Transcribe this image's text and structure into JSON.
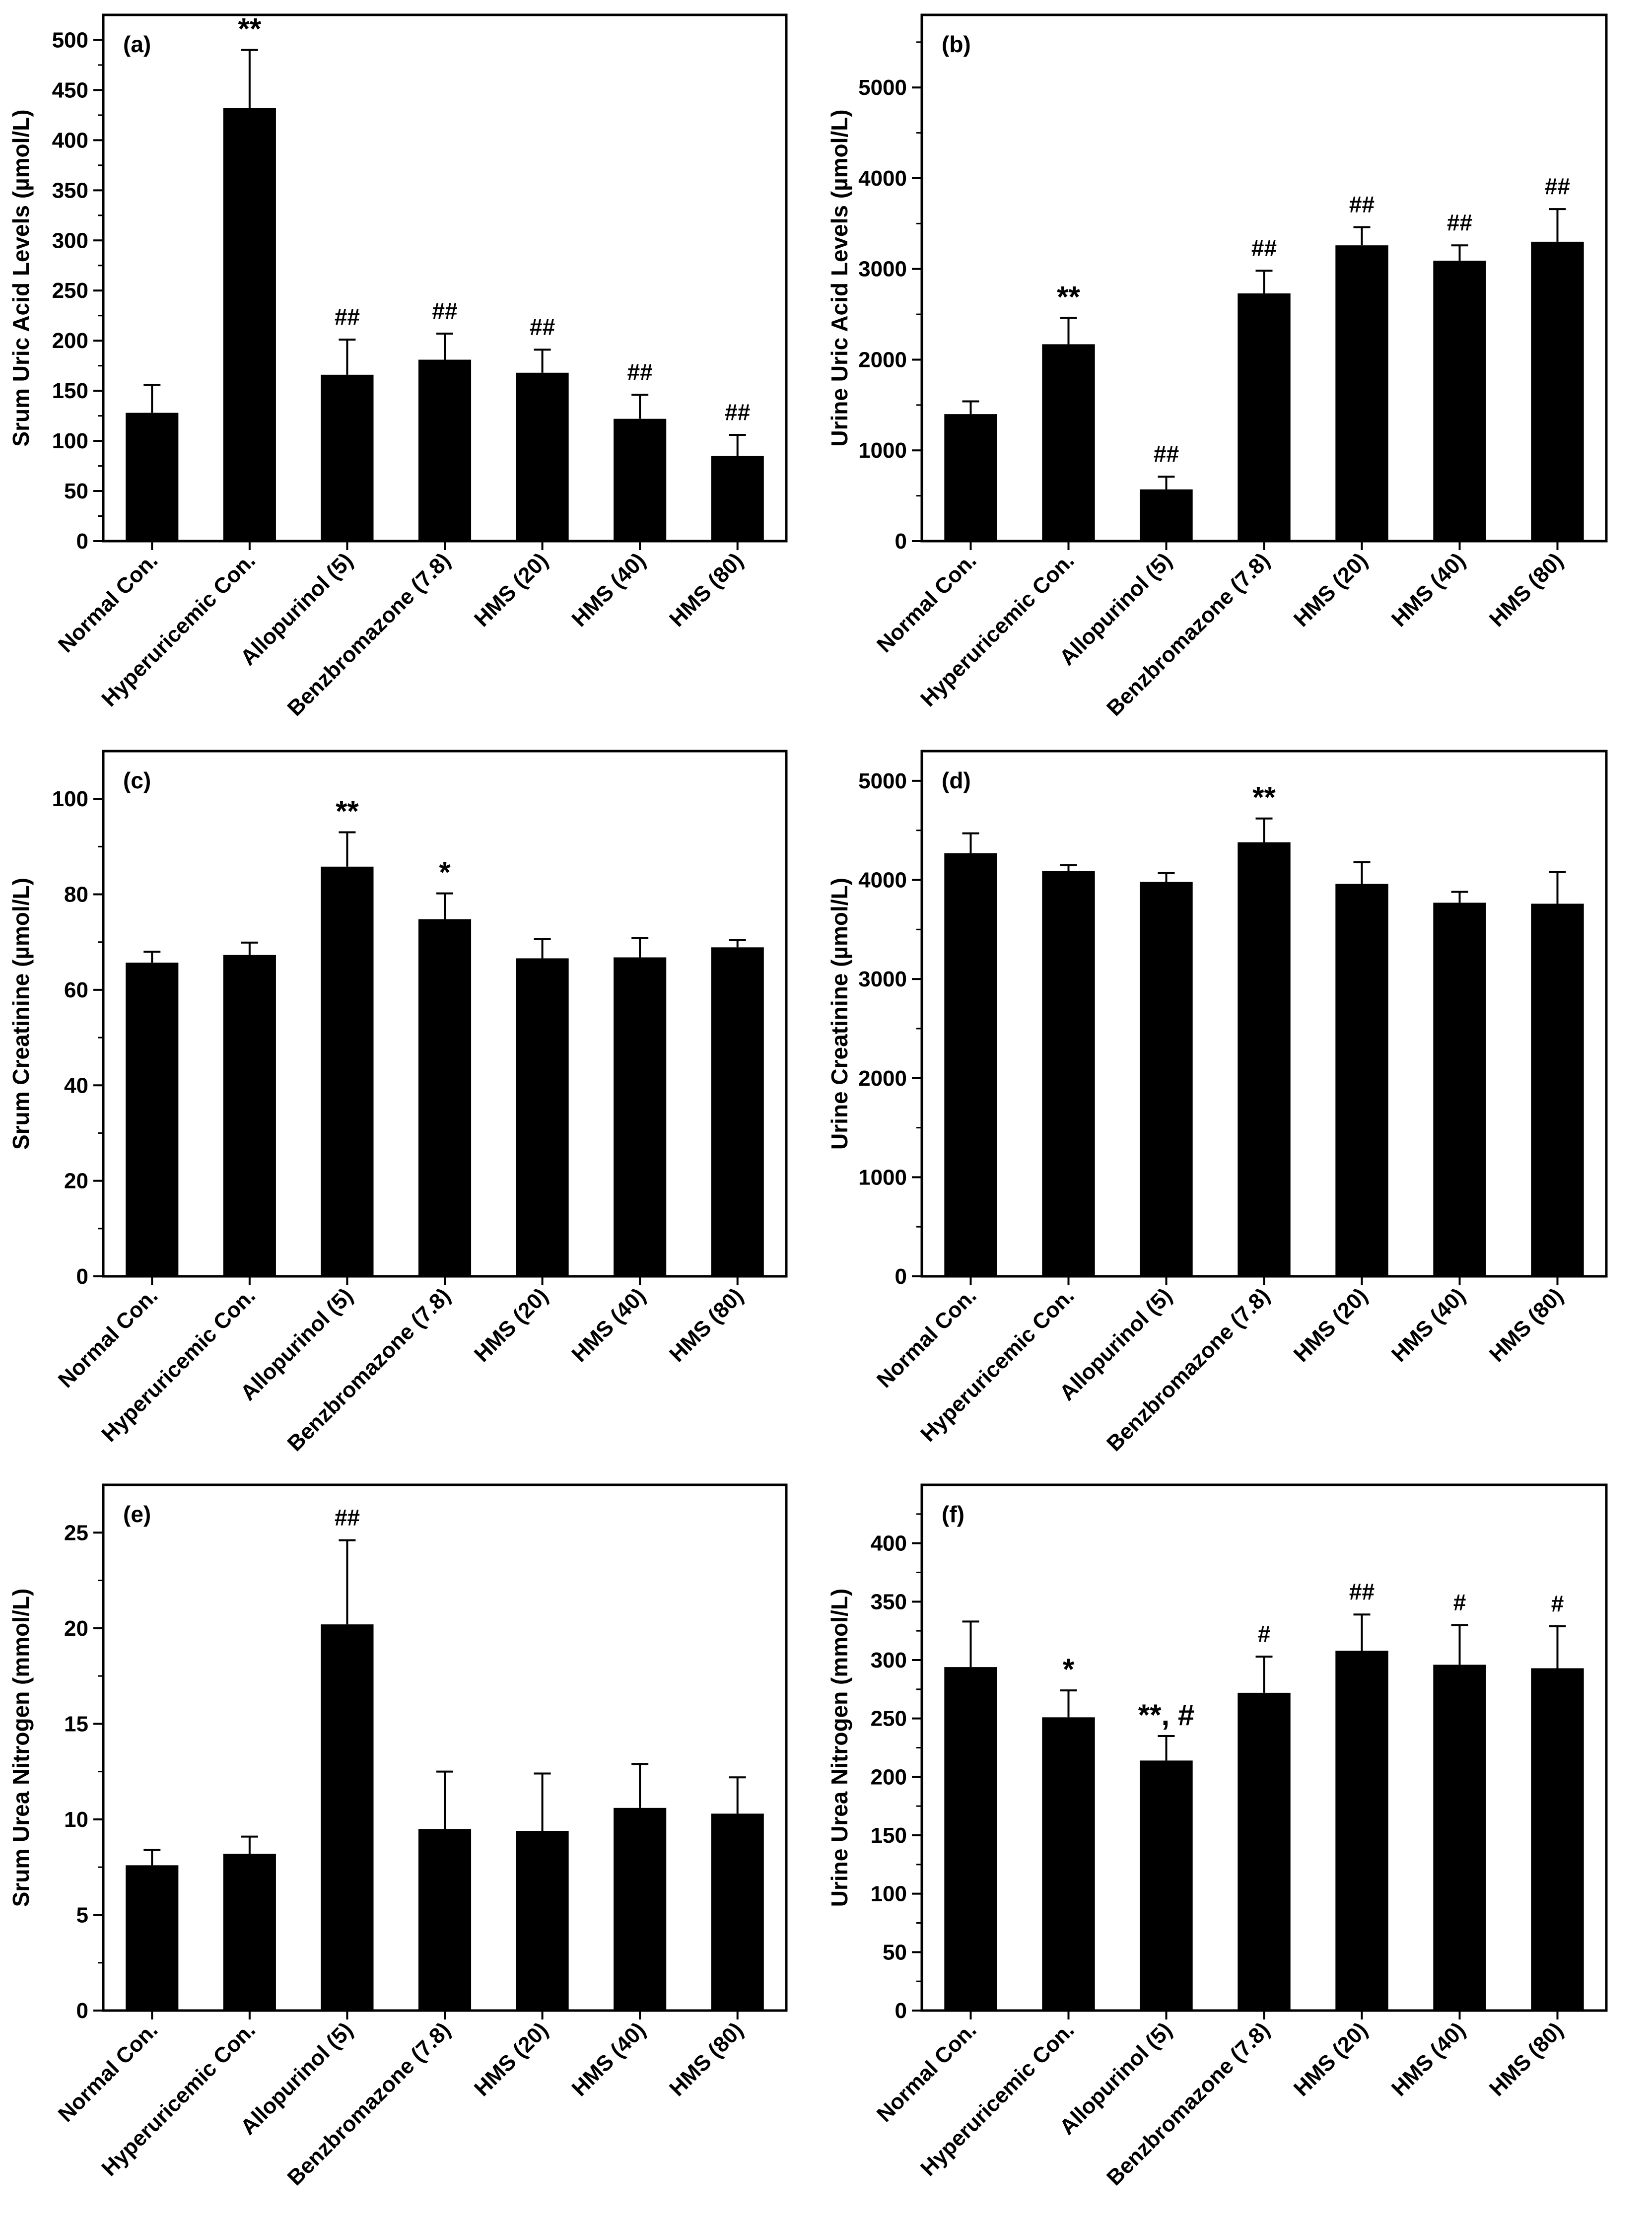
{
  "chart_data": [
    {
      "type": "bar",
      "panel": "(a)",
      "ylabel": "Srum Uric Acid Levels (µmol/L)",
      "ylim": [
        0,
        525
      ],
      "yticks": [
        0,
        50,
        100,
        150,
        200,
        250,
        300,
        350,
        400,
        450,
        500
      ],
      "categories": [
        "Normal Con.",
        "Hyperuricemic Con.",
        "Allopurinol (5)",
        "Benzbromazone (7.8)",
        "HMS (20)",
        "HMS (40)",
        "HMS (80)"
      ],
      "values": [
        128,
        432,
        166,
        181,
        168,
        122,
        85
      ],
      "errors": [
        28,
        58,
        35,
        26,
        23,
        24,
        21
      ],
      "significance": [
        "",
        "**",
        "##",
        "##",
        "##",
        "##",
        "##"
      ]
    },
    {
      "type": "bar",
      "panel": "(b)",
      "ylabel": "Urine Uric Acid Levels (µmol/L)",
      "ylim": [
        0,
        5800
      ],
      "yticks": [
        0,
        1000,
        2000,
        3000,
        4000,
        5000
      ],
      "categories": [
        "Normal Con.",
        "Hyperuricemic Con.",
        "Allopurinol (5)",
        "Benzbromazone (7.8)",
        "HMS (20)",
        "HMS (40)",
        "HMS (80)"
      ],
      "values": [
        1400,
        2170,
        570,
        2730,
        3260,
        3090,
        3300
      ],
      "errors": [
        140,
        290,
        140,
        250,
        200,
        170,
        360
      ],
      "significance": [
        "",
        "**",
        "##",
        "##",
        "##",
        "##",
        "##"
      ]
    },
    {
      "type": "bar",
      "panel": "(c)",
      "ylabel": "Srum Creatinine (µmol/L)",
      "ylim": [
        0,
        110
      ],
      "yticks": [
        0,
        20,
        40,
        60,
        80,
        100
      ],
      "categories": [
        "Normal Con.",
        "Hyperuricemic Con.",
        "Allopurinol (5)",
        "Benzbromazone (7.8)",
        "HMS (20)",
        "HMS (40)",
        "HMS (80)"
      ],
      "values": [
        65.7,
        67.3,
        85.8,
        74.8,
        66.6,
        66.8,
        68.9
      ],
      "errors": [
        2.3,
        2.6,
        7.2,
        5.4,
        4.0,
        4.1,
        1.5
      ],
      "significance": [
        "",
        "",
        "**",
        "*",
        "",
        "",
        ""
      ]
    },
    {
      "type": "bar",
      "panel": "(d)",
      "ylabel": "Urine Creatinine (µmol/L)",
      "ylim": [
        0,
        5300
      ],
      "yticks": [
        0,
        1000,
        2000,
        3000,
        4000,
        5000
      ],
      "categories": [
        "Normal Con.",
        "Hyperuricemic Con.",
        "Allopurinol (5)",
        "Benzbromazone (7.8)",
        "HMS (20)",
        "HMS (40)",
        "HMS (80)"
      ],
      "values": [
        4270,
        4090,
        3980,
        4380,
        3960,
        3770,
        3760
      ],
      "errors": [
        200,
        60,
        90,
        240,
        220,
        110,
        320
      ],
      "significance": [
        "",
        "",
        "",
        "**",
        "",
        "",
        ""
      ]
    },
    {
      "type": "bar",
      "panel": "(e)",
      "ylabel": "Srum Urea Nitrogen (mmol/L)",
      "ylim": [
        0,
        27.5
      ],
      "yticks": [
        0,
        5,
        10,
        15,
        20,
        25
      ],
      "categories": [
        "Normal Con.",
        "Hyperuricemic Con.",
        "Allopurinol (5)",
        "Benzbromazone (7.8)",
        "HMS (20)",
        "HMS (40)",
        "HMS (80)"
      ],
      "values": [
        7.6,
        8.2,
        20.2,
        9.5,
        9.4,
        10.6,
        10.3
      ],
      "errors": [
        0.8,
        0.9,
        4.4,
        3.0,
        3.0,
        2.3,
        1.9
      ],
      "significance": [
        "",
        "",
        "##",
        "",
        "",
        "",
        ""
      ]
    },
    {
      "type": "bar",
      "panel": "(f)",
      "ylabel": "Urine Urea Nitrogen (mmol/L)",
      "ylim": [
        0,
        450
      ],
      "yticks": [
        0,
        50,
        100,
        150,
        200,
        250,
        300,
        350,
        400
      ],
      "categories": [
        "Normal Con.",
        "Hyperuricemic Con.",
        "Allopurinol (5)",
        "Benzbromazone (7.8)",
        "HMS (20)",
        "HMS (40)",
        "HMS (80)"
      ],
      "values": [
        294,
        251,
        214,
        272,
        308,
        296,
        293
      ],
      "errors": [
        39,
        23,
        21,
        31,
        31,
        34,
        36
      ],
      "significance": [
        "",
        "*",
        "**, #",
        "#",
        "##",
        "#",
        "#"
      ]
    }
  ]
}
